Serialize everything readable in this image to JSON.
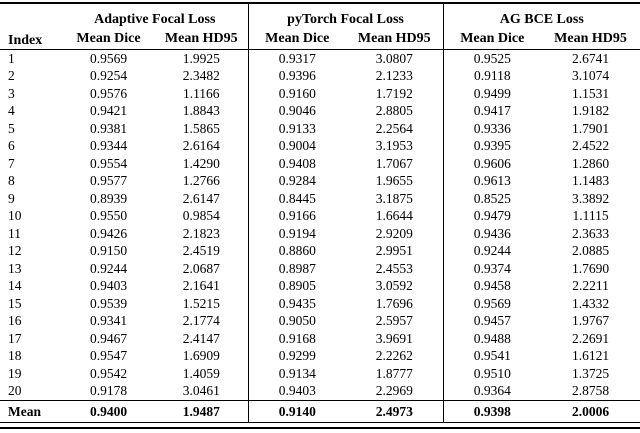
{
  "colors": {
    "text": "#000000",
    "background": "#ffffff",
    "rule": "#000000"
  },
  "table": {
    "index_header": "Index",
    "groups": [
      {
        "label": "Adaptive Focal Loss",
        "subheaders": [
          "Mean Dice",
          "Mean HD95"
        ]
      },
      {
        "label": "pyTorch Focal Loss",
        "subheaders": [
          "Mean Dice",
          "Mean HD95"
        ]
      },
      {
        "label": "AG BCE Loss",
        "subheaders": [
          "Mean Dice",
          "Mean HD95"
        ]
      }
    ],
    "rows": [
      {
        "index": "1",
        "values": [
          "0.9569",
          "1.9925",
          "0.9317",
          "3.0807",
          "0.9525",
          "2.6741"
        ]
      },
      {
        "index": "2",
        "values": [
          "0.9254",
          "2.3482",
          "0.9396",
          "2.1233",
          "0.9118",
          "3.1074"
        ]
      },
      {
        "index": "3",
        "values": [
          "0.9576",
          "1.1166",
          "0.9160",
          "1.7192",
          "0.9499",
          "1.1531"
        ]
      },
      {
        "index": "4",
        "values": [
          "0.9421",
          "1.8843",
          "0.9046",
          "2.8805",
          "0.9417",
          "1.9182"
        ]
      },
      {
        "index": "5",
        "values": [
          "0.9381",
          "1.5865",
          "0.9133",
          "2.2564",
          "0.9336",
          "1.7901"
        ]
      },
      {
        "index": "6",
        "values": [
          "0.9344",
          "2.6164",
          "0.9004",
          "3.1953",
          "0.9395",
          "2.4522"
        ]
      },
      {
        "index": "7",
        "values": [
          "0.9554",
          "1.4290",
          "0.9408",
          "1.7067",
          "0.9606",
          "1.2860"
        ]
      },
      {
        "index": "8",
        "values": [
          "0.9577",
          "1.2766",
          "0.9284",
          "1.9655",
          "0.9613",
          "1.1483"
        ]
      },
      {
        "index": "9",
        "values": [
          "0.8939",
          "2.6147",
          "0.8445",
          "3.1875",
          "0.8525",
          "3.3892"
        ]
      },
      {
        "index": "10",
        "values": [
          "0.9550",
          "0.9854",
          "0.9166",
          "1.6644",
          "0.9479",
          "1.1115"
        ]
      },
      {
        "index": "11",
        "values": [
          "0.9426",
          "2.1823",
          "0.9194",
          "2.9209",
          "0.9436",
          "2.3633"
        ]
      },
      {
        "index": "12",
        "values": [
          "0.9150",
          "2.4519",
          "0.8860",
          "2.9951",
          "0.9244",
          "2.0885"
        ]
      },
      {
        "index": "13",
        "values": [
          "0.9244",
          "2.0687",
          "0.8987",
          "2.4553",
          "0.9374",
          "1.7690"
        ]
      },
      {
        "index": "14",
        "values": [
          "0.9403",
          "2.1641",
          "0.8905",
          "3.0592",
          "0.9458",
          "2.2211"
        ]
      },
      {
        "index": "15",
        "values": [
          "0.9539",
          "1.5215",
          "0.9435",
          "1.7696",
          "0.9569",
          "1.4332"
        ]
      },
      {
        "index": "16",
        "values": [
          "0.9341",
          "2.1774",
          "0.9050",
          "2.5957",
          "0.9457",
          "1.9767"
        ]
      },
      {
        "index": "17",
        "values": [
          "0.9467",
          "2.4147",
          "0.9168",
          "3.9691",
          "0.9488",
          "2.2691"
        ]
      },
      {
        "index": "18",
        "values": [
          "0.9547",
          "1.6909",
          "0.9299",
          "2.2262",
          "0.9541",
          "1.6121"
        ]
      },
      {
        "index": "19",
        "values": [
          "0.9542",
          "1.4059",
          "0.9134",
          "1.8777",
          "0.9510",
          "1.3725"
        ]
      },
      {
        "index": "20",
        "values": [
          "0.9178",
          "3.0461",
          "0.9403",
          "2.2969",
          "0.9364",
          "2.8758"
        ]
      }
    ],
    "mean_row": {
      "index": "Mean",
      "values": [
        "0.9400",
        "1.9487",
        "0.9140",
        "2.4973",
        "0.9398",
        "2.0006"
      ]
    }
  }
}
